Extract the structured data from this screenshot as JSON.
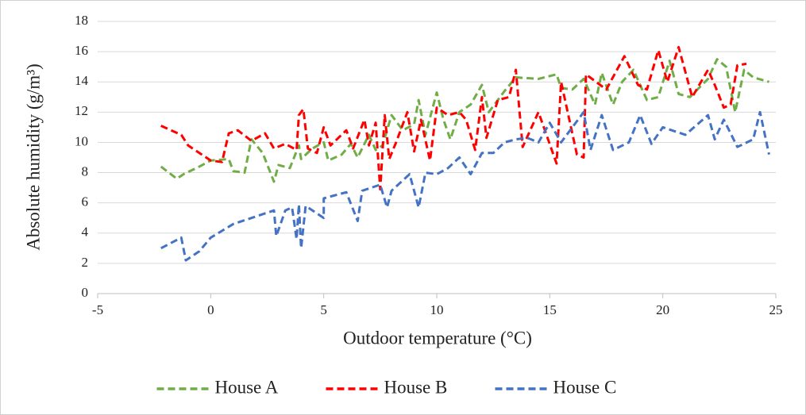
{
  "chart_data": {
    "type": "line",
    "xlabel": "Outdoor temperature (°C)",
    "ylabel": "Absolute humidity (g/m³)",
    "xlim": [
      -5,
      25
    ],
    "xticks": [
      -5,
      0,
      5,
      10,
      15,
      20,
      25
    ],
    "ylim": [
      0,
      18
    ],
    "yticks": [
      0,
      2,
      4,
      6,
      8,
      10,
      12,
      14,
      16,
      18
    ],
    "grid": true,
    "legend": "bottom",
    "series": [
      {
        "name": "House A",
        "color": "#70ad47",
        "x": [
          -2.2,
          -1.5,
          -1.2,
          -0.5,
          0,
          0.8,
          1,
          1.5,
          1.8,
          2.3,
          2.8,
          3,
          3.5,
          3.9,
          4,
          4.5,
          5,
          5.2,
          5.8,
          6.2,
          6.5,
          7,
          7.3,
          7.6,
          8,
          8.5,
          9,
          9.2,
          9.5,
          10,
          10.3,
          10.6,
          11,
          11.5,
          12,
          12.3,
          13,
          13.5,
          14.5,
          15.3,
          15.5,
          16,
          16.5,
          17,
          17.3,
          17.8,
          18.2,
          18.7,
          19.3,
          19.8,
          20.3,
          20.7,
          21.2,
          22,
          22.4,
          22.8,
          23.2,
          23.6,
          24,
          24.7
        ],
        "values": [
          8.4,
          7.6,
          7.9,
          8.4,
          8.8,
          8.9,
          8.1,
          8.0,
          10.2,
          9.3,
          7.4,
          8.5,
          8.3,
          9.8,
          8.9,
          9.6,
          10.0,
          8.8,
          9.2,
          9.9,
          9.0,
          10.5,
          9.5,
          9.8,
          11.8,
          10.8,
          11.2,
          12.8,
          10.5,
          13.3,
          11.5,
          10.2,
          12.0,
          12.5,
          13.8,
          12.0,
          13.4,
          14.3,
          14.2,
          14.5,
          13.6,
          13.5,
          14.2,
          12.5,
          14.6,
          12.5,
          14.0,
          14.8,
          12.8,
          13.0,
          15.4,
          13.2,
          13.0,
          14.2,
          15.5,
          15.0,
          12.0,
          14.8,
          14.3,
          14.0
        ]
      },
      {
        "name": "House B",
        "color": "#ff0000",
        "x": [
          -2.2,
          -1.3,
          -1,
          0,
          0.5,
          0.8,
          1.2,
          1.8,
          2.4,
          2.8,
          3.3,
          3.8,
          3.9,
          4.1,
          4.3,
          4.7,
          5,
          5.3,
          6,
          6.3,
          6.8,
          7,
          7.3,
          7.5,
          7.7,
          7.9,
          8.2,
          8.7,
          9,
          9.3,
          9.7,
          10,
          10.5,
          11,
          11.3,
          11.7,
          12,
          12.2,
          12.7,
          13.2,
          13.5,
          13.8,
          14.5,
          15.3,
          15.5,
          16.2,
          16.5,
          16.6,
          17.5,
          18.3,
          18.9,
          19.3,
          19.8,
          20.2,
          20.7,
          21.3,
          22,
          22.3,
          22.7,
          23,
          23.3,
          23.7
        ],
        "values": [
          11.1,
          10.5,
          9.8,
          8.8,
          8.7,
          10.6,
          10.8,
          10.1,
          10.6,
          9.6,
          9.9,
          9.5,
          11.8,
          12.2,
          9.6,
          9.3,
          11.0,
          9.8,
          10.8,
          9.6,
          11.5,
          9.8,
          11.3,
          6.9,
          11.8,
          8.9,
          10.0,
          12.0,
          9.4,
          11.5,
          8.8,
          12.3,
          11.8,
          12.0,
          11.5,
          9.5,
          13.0,
          10.3,
          12.8,
          13.0,
          14.8,
          9.7,
          12.0,
          8.6,
          14.0,
          9.2,
          9.0,
          14.5,
          13.5,
          15.7,
          13.8,
          13.5,
          16.1,
          14.0,
          16.3,
          13.0,
          14.8,
          13.8,
          12.3,
          12.5,
          15.1,
          15.2
        ]
      },
      {
        "name": "House C",
        "color": "#4472c4",
        "x": [
          -2.2,
          -1.3,
          -1.1,
          -0.5,
          0,
          1,
          2,
          2.8,
          2.9,
          3.3,
          3.6,
          3.8,
          3.9,
          4,
          4.2,
          5,
          5,
          6,
          6.5,
          6.7,
          7.5,
          7.8,
          8,
          8.8,
          9.2,
          9.5,
          10,
          10.5,
          11,
          11.5,
          12,
          12.5,
          13,
          13.5,
          14,
          14.5,
          15,
          15.5,
          16,
          16.5,
          16.8,
          17.3,
          17.8,
          18.5,
          19,
          19.5,
          20,
          21,
          22,
          22.3,
          22.7,
          23.3,
          24,
          24.3,
          24.7
        ],
        "values": [
          3.0,
          3.7,
          2.2,
          2.8,
          3.7,
          4.6,
          5.1,
          5.5,
          3.8,
          5.5,
          5.7,
          3.6,
          5.9,
          3.0,
          5.8,
          5.0,
          6.3,
          6.7,
          4.8,
          6.8,
          7.2,
          5.7,
          6.8,
          7.9,
          5.7,
          8.0,
          7.9,
          8.3,
          9.0,
          7.9,
          9.3,
          9.3,
          10.0,
          10.2,
          10.3,
          10.0,
          11.3,
          10.0,
          11.0,
          12.0,
          9.5,
          11.8,
          9.5,
          10.0,
          11.8,
          9.9,
          11.0,
          10.5,
          11.8,
          10.2,
          11.5,
          9.7,
          10.2,
          12.0,
          9.2
        ]
      }
    ]
  }
}
